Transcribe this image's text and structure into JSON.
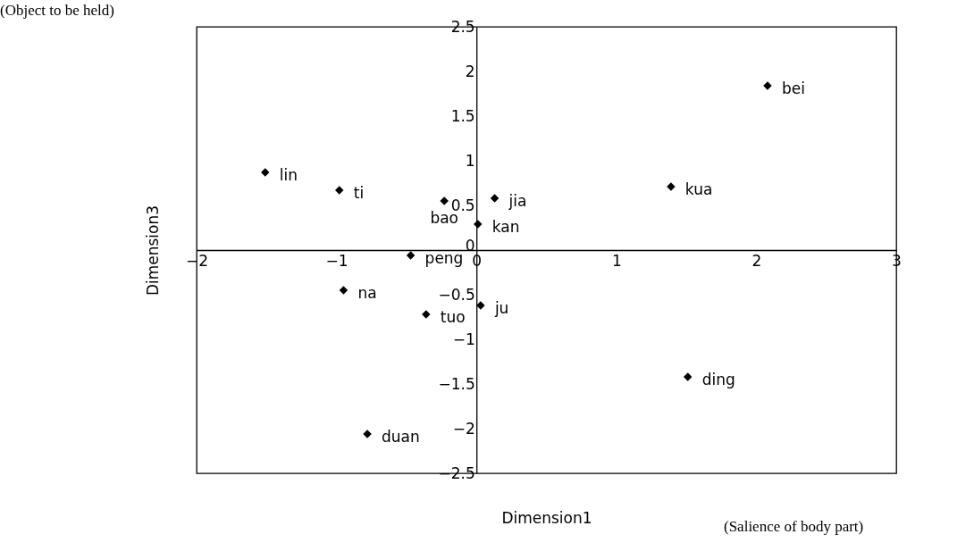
{
  "chart_data": {
    "type": "scatter",
    "xlabel": "Dimension1",
    "ylabel": "Dimension3",
    "marker": "diamond",
    "grid": false,
    "xlim": [
      -2,
      3
    ],
    "ylim": [
      -2.5,
      2.5
    ],
    "xticks": [
      -2,
      -1,
      0,
      1,
      2,
      3
    ],
    "yticks": [
      -2.5,
      -2,
      -1.5,
      -1,
      -0.5,
      0,
      0.5,
      1,
      1.5,
      2,
      2.5
    ],
    "series": [
      {
        "color": "#000000",
        "x": [
          -1.51,
          -0.98,
          -0.23,
          0.13,
          0.01,
          -0.47,
          -0.95,
          -0.36,
          0.03,
          -0.78,
          1.51,
          1.39,
          2.08
        ],
        "values": [
          0.87,
          0.67,
          0.55,
          0.58,
          0.29,
          -0.06,
          -0.45,
          -0.72,
          -0.62,
          -2.06,
          -1.42,
          0.71,
          1.84
        ]
      }
    ],
    "annotations": [
      {
        "text": "lin",
        "x": -1.51,
        "y": 0.87
      },
      {
        "text": "ti",
        "x": -0.98,
        "y": 0.67
      },
      {
        "text": "bao",
        "x": -0.23,
        "y": 0.55
      },
      {
        "text": "jia",
        "x": 0.13,
        "y": 0.58
      },
      {
        "text": "kan",
        "x": 0.01,
        "y": 0.29
      },
      {
        "text": "peng",
        "x": -0.47,
        "y": -0.06
      },
      {
        "text": "na",
        "x": -0.95,
        "y": -0.45
      },
      {
        "text": "tuo",
        "x": -0.36,
        "y": -0.72
      },
      {
        "text": "ju",
        "x": 0.03,
        "y": -0.62
      },
      {
        "text": "duan",
        "x": -0.78,
        "y": -2.06
      },
      {
        "text": "ding",
        "x": 1.51,
        "y": -1.42
      },
      {
        "text": "kua",
        "x": 1.39,
        "y": 0.71
      },
      {
        "text": "bei",
        "x": 2.08,
        "y": 1.84
      },
      "(Object to be held)",
      "(Salience of body part)"
    ]
  }
}
